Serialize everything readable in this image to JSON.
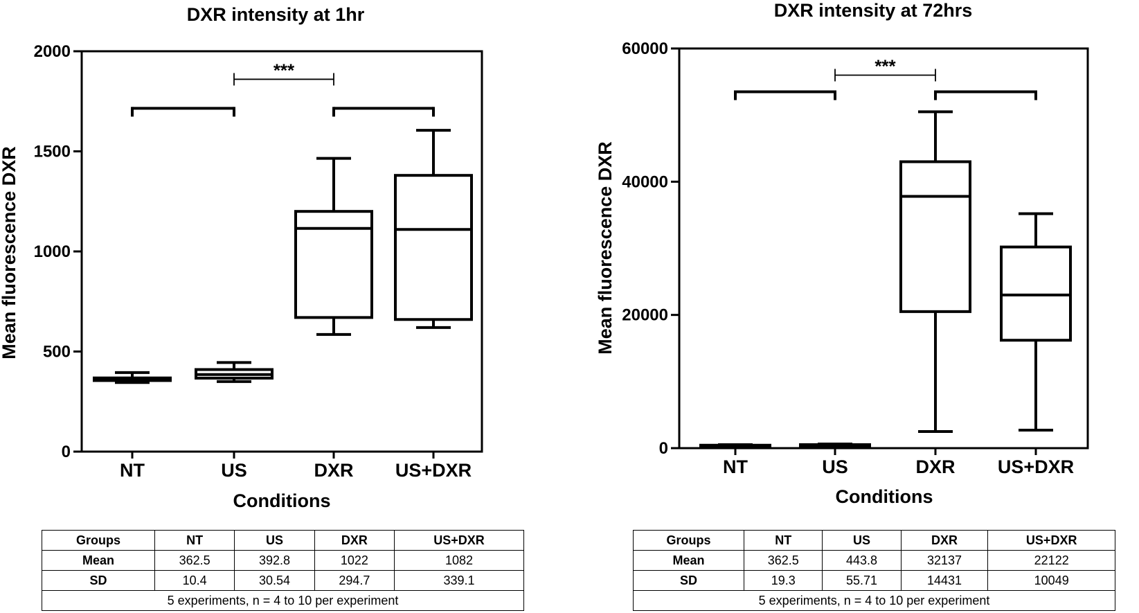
{
  "chart_data": [
    {
      "type": "box",
      "title": "DXR intensity at 1hr",
      "xlabel": "Conditions",
      "ylabel": "Mean fluorescence DXR",
      "ylim": [
        0,
        2000
      ],
      "yticks": [
        "0",
        "500",
        "1000",
        "1500",
        "2000"
      ],
      "categories": [
        "NT",
        "US",
        "DXR",
        "US+DXR"
      ],
      "boxes": [
        {
          "category": "NT",
          "min": 345,
          "q1": 355,
          "median": 362,
          "q3": 368,
          "max": 395
        },
        {
          "category": "US",
          "min": 350,
          "q1": 367,
          "median": 385,
          "q3": 410,
          "max": 445
        },
        {
          "category": "DXR",
          "min": 585,
          "q1": 670,
          "median": 1115,
          "q3": 1200,
          "max": 1465
        },
        {
          "category": "US+DXR",
          "min": 620,
          "q1": 660,
          "median": 1110,
          "q3": 1380,
          "max": 1605
        }
      ],
      "significance": [
        {
          "from": "NT",
          "to": "US",
          "label": "",
          "y": 1715
        },
        {
          "from": "DXR",
          "to": "US+DXR",
          "label": "",
          "y": 1715
        },
        {
          "from": "US",
          "to": "DXR",
          "label": "***",
          "y": 1860
        }
      ],
      "table": {
        "header": [
          "Groups",
          "NT",
          "US",
          "DXR",
          "US+DXR"
        ],
        "rows": [
          [
            "Mean",
            "362.5",
            "392.8",
            "1022",
            "1082"
          ],
          [
            "SD",
            "10.4",
            "30.54",
            "294.7",
            "339.1"
          ]
        ],
        "footnote": "5 experiments, n = 4 to 10 per experiment"
      }
    },
    {
      "type": "box",
      "title": "DXR intensity at 72hrs",
      "xlabel": "Conditions",
      "ylabel": "Mean fluorescence DXR",
      "ylim": [
        0,
        60000
      ],
      "yticks": [
        "0",
        "20000",
        "40000",
        "60000"
      ],
      "categories": [
        "NT",
        "US",
        "DXR",
        "US+DXR"
      ],
      "boxes": [
        {
          "category": "NT",
          "min": 200,
          "q1": 280,
          "median": 360,
          "q3": 440,
          "max": 520
        },
        {
          "category": "US",
          "min": 250,
          "q1": 350,
          "median": 440,
          "q3": 530,
          "max": 620
        },
        {
          "category": "DXR",
          "min": 2500,
          "q1": 20500,
          "median": 37800,
          "q3": 43000,
          "max": 50500
        },
        {
          "category": "US+DXR",
          "min": 2700,
          "q1": 16200,
          "median": 23000,
          "q3": 30200,
          "max": 35200
        }
      ],
      "significance": [
        {
          "from": "NT",
          "to": "US",
          "label": "",
          "y": 53500
        },
        {
          "from": "DXR",
          "to": "US+DXR",
          "label": "",
          "y": 53500
        },
        {
          "from": "US",
          "to": "DXR",
          "label": "***",
          "y": 56000
        }
      ],
      "table": {
        "header": [
          "Groups",
          "NT",
          "US",
          "DXR",
          "US+DXR"
        ],
        "rows": [
          [
            "Mean",
            "362.5",
            "443.8",
            "32137",
            "22122"
          ],
          [
            "SD",
            "19.3",
            "55.71",
            "14431",
            "10049"
          ]
        ],
        "footnote": "5 experiments, n = 4 to 10 per experiment"
      }
    }
  ]
}
